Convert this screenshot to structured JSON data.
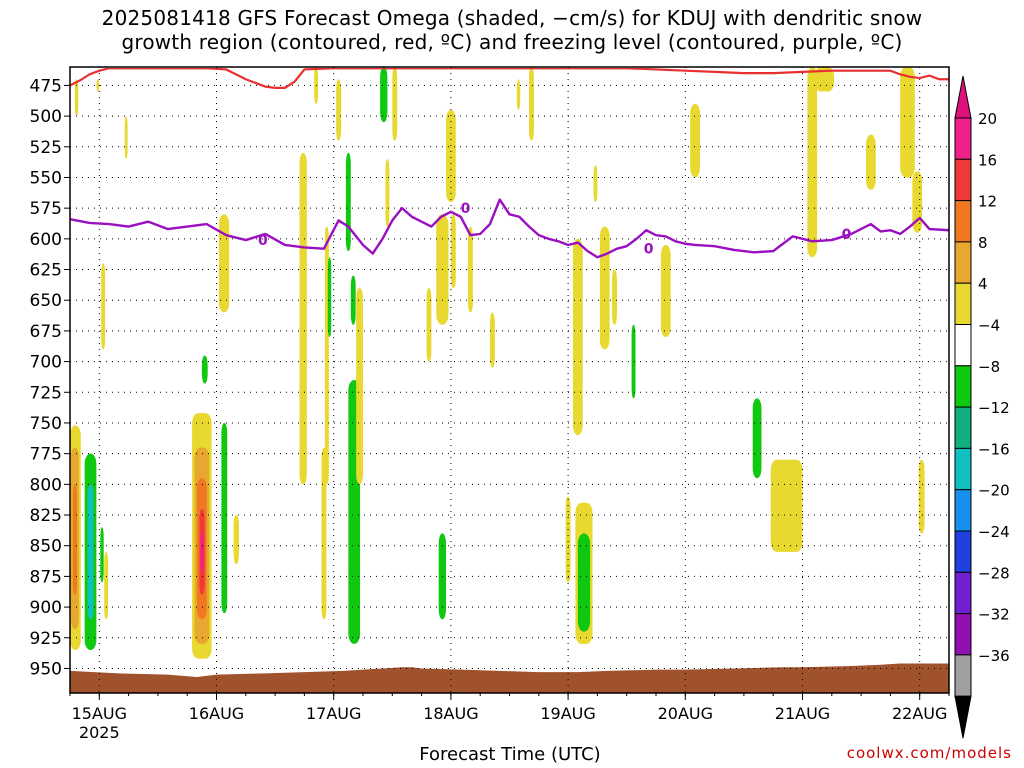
{
  "title": {
    "line1": "2025081418 GFS Forecast Omega (shaded, −cm/s) for KDUJ with dendritic snow",
    "line2": "growth region (contoured, red, ºC) and freezing level (contoured, purple, ºC)"
  },
  "credit": "coolwx.com/models",
  "chart_data": {
    "type": "heatmap",
    "xlabel": "Forecast Time (UTC)",
    "x_ticks": [
      {
        "t": 6,
        "label": "15AUG",
        "sub": "2025"
      },
      {
        "t": 30,
        "label": "16AUG"
      },
      {
        "t": 54,
        "label": "17AUG"
      },
      {
        "t": 78,
        "label": "18AUG"
      },
      {
        "t": 102,
        "label": "19AUG"
      },
      {
        "t": 126,
        "label": "20AUG"
      },
      {
        "t": 150,
        "label": "21AUG"
      },
      {
        "t": 174,
        "label": "22AUG"
      }
    ],
    "xlim_hours_from_14AUG18Z": [
      0,
      180
    ],
    "y_levels_hpa": [
      475,
      500,
      525,
      550,
      575,
      600,
      625,
      650,
      675,
      700,
      725,
      750,
      775,
      800,
      825,
      850,
      875,
      900,
      925,
      950
    ],
    "ylim_hpa": [
      460,
      970
    ],
    "grid": true,
    "colorbar": {
      "labels": [
        "20",
        "16",
        "12",
        "8",
        "4",
        "−4",
        "−8",
        "−12",
        "−16",
        "−20",
        "−24",
        "−28",
        "−32",
        "−36"
      ],
      "colors": [
        "#f0208a",
        "#f03a3a",
        "#f07820",
        "#e8a830",
        "#e8d830",
        "#ffffff",
        "#10c810",
        "#10b080",
        "#10c0c0",
        "#1890f0",
        "#2040e0",
        "#7020d0",
        "#9010b0",
        "#a0a0a0"
      ],
      "top_arrow_color": "#e0107a",
      "bottom_arrow_color": "#000000"
    },
    "freezing_level": {
      "color": "#9a10c0",
      "label": "0",
      "label_points": [
        {
          "t": 39.5,
          "p": 601
        },
        {
          "t": 81,
          "p": 575
        },
        {
          "t": 118.5,
          "p": 608
        },
        {
          "t": 159,
          "p": 596
        }
      ],
      "t": [
        0,
        4,
        8,
        12,
        16,
        20,
        24,
        28,
        32,
        36,
        40,
        44,
        48,
        52,
        55,
        57,
        60,
        62,
        64,
        66,
        68,
        70,
        72,
        74,
        76,
        78,
        80,
        82,
        84,
        86,
        88,
        90,
        92,
        94,
        96,
        98,
        100,
        102,
        104,
        106,
        108,
        110,
        112,
        114,
        116,
        118,
        120,
        122,
        124,
        126,
        128,
        132,
        136,
        140,
        144,
        148,
        150,
        152,
        156,
        160,
        164,
        166,
        168,
        170,
        172,
        174,
        176,
        180
      ],
      "p": [
        584,
        587,
        588,
        590,
        586,
        592,
        590,
        588,
        597,
        601,
        596,
        605,
        607,
        608,
        585,
        590,
        605,
        612,
        600,
        585,
        575,
        582,
        586,
        590,
        582,
        578,
        582,
        597,
        596,
        588,
        568,
        580,
        582,
        590,
        597,
        600,
        602,
        605,
        603,
        610,
        615,
        612,
        608,
        606,
        600,
        593,
        597,
        598,
        602,
        604,
        605,
        606,
        609,
        611,
        610,
        598,
        600,
        602,
        601,
        596,
        588,
        594,
        593,
        596,
        590,
        583,
        592,
        593
      ]
    },
    "dgz_boundary": {
      "color": "#e83030",
      "t": [
        0,
        2,
        4,
        6,
        8,
        12,
        16,
        20,
        24,
        28,
        32,
        34,
        36,
        38,
        40,
        42,
        44,
        46,
        48,
        54,
        60,
        66,
        72,
        78,
        84,
        90,
        96,
        102,
        108,
        114,
        120,
        126,
        132,
        138,
        144,
        150,
        156,
        162,
        168,
        170,
        172,
        174,
        176,
        178,
        180
      ],
      "p": [
        475,
        471,
        466,
        463,
        461,
        461,
        461,
        461,
        461,
        461,
        462,
        466,
        470,
        473,
        476,
        477,
        477,
        472,
        462,
        461,
        461,
        461,
        461,
        461,
        461,
        461,
        461,
        461,
        461,
        461,
        462,
        463,
        464,
        465,
        465,
        464,
        463,
        463,
        463,
        466,
        468,
        469,
        467,
        470,
        470
      ]
    },
    "omega_regions": [
      {
        "t0": 0,
        "t1": 2.2,
        "p0": 752,
        "p1": 935,
        "level": "4"
      },
      {
        "t0": 0.2,
        "t1": 1.8,
        "p0": 770,
        "p1": 918,
        "level": "8"
      },
      {
        "t0": 0.6,
        "t1": 1.4,
        "p0": 800,
        "p1": 890,
        "level": "12"
      },
      {
        "t0": 3.0,
        "t1": 5.4,
        "p0": 775,
        "p1": 935,
        "level": "-4"
      },
      {
        "t0": 3.6,
        "t1": 4.8,
        "p0": 800,
        "p1": 910,
        "level": "-12"
      },
      {
        "t0": 6.2,
        "t1": 6.9,
        "p0": 835,
        "p1": 880,
        "level": "-4"
      },
      {
        "t0": 7.0,
        "t1": 7.8,
        "p0": 855,
        "p1": 910,
        "level": "4"
      },
      {
        "t0": 25.0,
        "t1": 29.0,
        "p0": 742,
        "p1": 942,
        "level": "4"
      },
      {
        "t0": 25.5,
        "t1": 28.5,
        "p0": 770,
        "p1": 930,
        "level": "8"
      },
      {
        "t0": 26.0,
        "t1": 28.0,
        "p0": 795,
        "p1": 910,
        "level": "12"
      },
      {
        "t0": 26.5,
        "t1": 27.6,
        "p0": 820,
        "p1": 890,
        "level": "16"
      },
      {
        "t0": 26.8,
        "t1": 27.4,
        "p0": 838,
        "p1": 872,
        "level": "20"
      },
      {
        "t0": 27.0,
        "t1": 28.2,
        "p0": 695,
        "p1": 718,
        "level": "-4"
      },
      {
        "t0": 31.0,
        "t1": 32.2,
        "p0": 750,
        "p1": 905,
        "level": "-4"
      },
      {
        "t0": 33.5,
        "t1": 34.6,
        "p0": 825,
        "p1": 865,
        "level": "4"
      },
      {
        "t0": 30.5,
        "t1": 32.6,
        "p0": 580,
        "p1": 660,
        "level": "4"
      },
      {
        "t0": 6.4,
        "t1": 7.2,
        "p0": 620,
        "p1": 690,
        "level": "4"
      },
      {
        "t0": 1.0,
        "t1": 1.7,
        "p0": 470,
        "p1": 500,
        "level": "4"
      },
      {
        "t0": 5.4,
        "t1": 6.0,
        "p0": 470,
        "p1": 480,
        "level": "4"
      },
      {
        "t0": 11.2,
        "t1": 11.8,
        "p0": 500,
        "p1": 535,
        "level": "4"
      },
      {
        "t0": 47.0,
        "t1": 48.5,
        "p0": 530,
        "p1": 800,
        "level": "4"
      },
      {
        "t0": 51.5,
        "t1": 52.5,
        "p0": 770,
        "p1": 910,
        "level": "4"
      },
      {
        "t0": 52.2,
        "t1": 53.0,
        "p0": 590,
        "p1": 800,
        "level": "4"
      },
      {
        "t0": 52.8,
        "t1": 53.5,
        "p0": 615,
        "p1": 680,
        "level": "-4"
      },
      {
        "t0": 56.5,
        "t1": 57.5,
        "p0": 530,
        "p1": 610,
        "level": "-4"
      },
      {
        "t0": 57.5,
        "t1": 58.5,
        "p0": 630,
        "p1": 670,
        "level": "-4"
      },
      {
        "t0": 57.0,
        "t1": 59.4,
        "p0": 715,
        "p1": 930,
        "level": "-4"
      },
      {
        "t0": 58.6,
        "t1": 60.0,
        "p0": 640,
        "p1": 800,
        "level": "4"
      },
      {
        "t0": 54.5,
        "t1": 55.5,
        "p0": 470,
        "p1": 520,
        "level": "4"
      },
      {
        "t0": 50.0,
        "t1": 50.8,
        "p0": 460,
        "p1": 490,
        "level": "4"
      },
      {
        "t0": 63.5,
        "t1": 65.0,
        "p0": 460,
        "p1": 505,
        "level": "-4"
      },
      {
        "t0": 64.6,
        "t1": 65.4,
        "p0": 535,
        "p1": 590,
        "level": "4"
      },
      {
        "t0": 66.0,
        "t1": 67.0,
        "p0": 460,
        "p1": 520,
        "level": "4"
      },
      {
        "t0": 73.0,
        "t1": 74.0,
        "p0": 640,
        "p1": 700,
        "level": "4"
      },
      {
        "t0": 77.0,
        "t1": 79.0,
        "p0": 495,
        "p1": 570,
        "level": "4"
      },
      {
        "t0": 75.0,
        "t1": 77.5,
        "p0": 580,
        "p1": 670,
        "level": "4"
      },
      {
        "t0": 75.5,
        "t1": 77.0,
        "p0": 840,
        "p1": 910,
        "level": "-4"
      },
      {
        "t0": 78.0,
        "t1": 79.0,
        "p0": 580,
        "p1": 640,
        "level": "4"
      },
      {
        "t0": 81.5,
        "t1": 82.5,
        "p0": 590,
        "p1": 660,
        "level": "4"
      },
      {
        "t0": 86.0,
        "t1": 87.0,
        "p0": 660,
        "p1": 705,
        "level": "4"
      },
      {
        "t0": 94.0,
        "t1": 95.0,
        "p0": 460,
        "p1": 520,
        "level": "4"
      },
      {
        "t0": 91.5,
        "t1": 92.2,
        "p0": 470,
        "p1": 495,
        "level": "4"
      },
      {
        "t0": 101.5,
        "t1": 102.5,
        "p0": 810,
        "p1": 880,
        "level": "4"
      },
      {
        "t0": 103.0,
        "t1": 105.0,
        "p0": 600,
        "p1": 760,
        "level": "4"
      },
      {
        "t0": 103.5,
        "t1": 107.0,
        "p0": 815,
        "p1": 930,
        "level": "4"
      },
      {
        "t0": 104.0,
        "t1": 106.5,
        "p0": 840,
        "p1": 920,
        "level": "-4"
      },
      {
        "t0": 107.2,
        "t1": 108.0,
        "p0": 540,
        "p1": 570,
        "level": "4"
      },
      {
        "t0": 108.5,
        "t1": 110.5,
        "p0": 590,
        "p1": 690,
        "level": "4"
      },
      {
        "t0": 111.0,
        "t1": 112.0,
        "p0": 625,
        "p1": 670,
        "level": "4"
      },
      {
        "t0": 115.0,
        "t1": 115.8,
        "p0": 670,
        "p1": 730,
        "level": "-4"
      },
      {
        "t0": 121.0,
        "t1": 123.0,
        "p0": 605,
        "p1": 680,
        "level": "4"
      },
      {
        "t0": 127.0,
        "t1": 129.0,
        "p0": 490,
        "p1": 550,
        "level": "4"
      },
      {
        "t0": 139.8,
        "t1": 141.6,
        "p0": 730,
        "p1": 795,
        "level": "-4"
      },
      {
        "t0": 143.5,
        "t1": 150.0,
        "p0": 780,
        "p1": 855,
        "level": "4"
      },
      {
        "t0": 151.0,
        "t1": 153.0,
        "p0": 460,
        "p1": 615,
        "level": "4"
      },
      {
        "t0": 152.5,
        "t1": 156.5,
        "p0": 460,
        "p1": 480,
        "level": "4"
      },
      {
        "t0": 163.0,
        "t1": 165.0,
        "p0": 515,
        "p1": 560,
        "level": "4"
      },
      {
        "t0": 170.0,
        "t1": 173.0,
        "p0": 460,
        "p1": 550,
        "level": "4"
      },
      {
        "t0": 172.5,
        "t1": 174.5,
        "p0": 545,
        "p1": 595,
        "level": "4"
      },
      {
        "t0": 173.8,
        "t1": 175.0,
        "p0": 780,
        "p1": 840,
        "level": "4"
      }
    ],
    "surface": {
      "color": "#a0522d",
      "t": [
        0,
        10,
        20,
        26,
        30,
        40,
        48,
        56,
        60,
        64,
        68,
        70,
        72,
        80,
        88,
        96,
        104,
        110,
        120,
        126,
        136,
        146,
        150,
        160,
        166,
        170,
        180
      ],
      "p": [
        952,
        954,
        955,
        957,
        955,
        954,
        953,
        952,
        951,
        950,
        949,
        949,
        950,
        951,
        952,
        953,
        953,
        952,
        951,
        951,
        950,
        949,
        949,
        948,
        947,
        946,
        946
      ]
    }
  }
}
